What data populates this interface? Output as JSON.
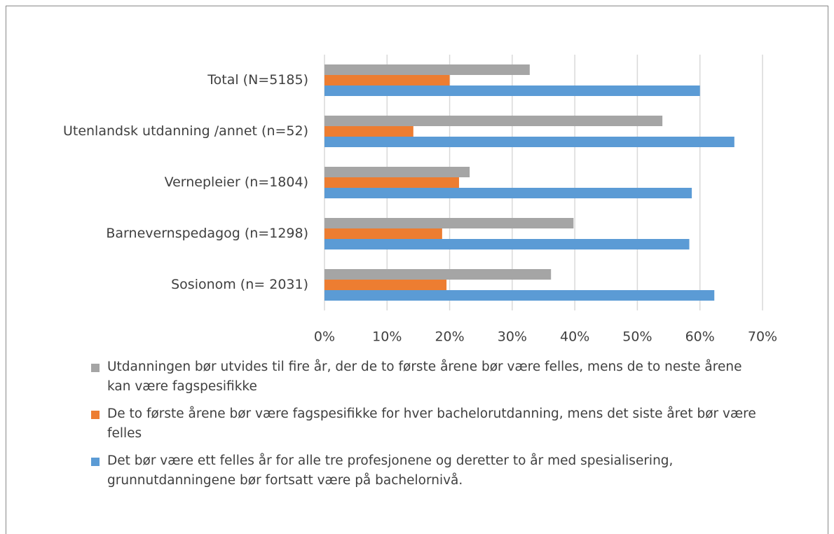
{
  "chart_data": {
    "type": "bar",
    "orientation": "horizontal",
    "categories": [
      "Total (N=5185)",
      "Utenlandsk utdanning /annet (n=52)",
      "Vernepleier (n=1804)",
      "Barnevernspedagog (n=1298)",
      "Sosionom (n= 2031)"
    ],
    "series": [
      {
        "name": "Utdanningen bør utvides til fire år, der de to første årene bør være felles, mens de to neste årene kan være fagspesifikke",
        "color": "#a5a5a5",
        "values": [
          32.8,
          54.0,
          23.2,
          39.8,
          36.2
        ]
      },
      {
        "name": "De to første årene bør være fagspesifikke for hver bachelorutdanning, mens det siste året bør være felles",
        "color": "#ed7d31",
        "values": [
          20.0,
          14.2,
          21.5,
          18.8,
          19.5
        ]
      },
      {
        "name": "Det bør være ett felles år for alle tre profesjonene og deretter to år med spesialisering, grunnutdanningene bør fortsatt være på bachelornivå.",
        "color": "#5b9bd5",
        "values": [
          60.0,
          65.5,
          58.7,
          58.3,
          62.3
        ]
      }
    ],
    "xlim": [
      0,
      70
    ],
    "xticks": [
      {
        "value": 0,
        "label": "0%"
      },
      {
        "value": 10,
        "label": "10%"
      },
      {
        "value": 20,
        "label": "20%"
      },
      {
        "value": 30,
        "label": "30%"
      },
      {
        "value": 40,
        "label": "40%"
      },
      {
        "value": 50,
        "label": "50%"
      },
      {
        "value": 60,
        "label": "60%"
      },
      {
        "value": 70,
        "label": "70%"
      }
    ],
    "grid": true,
    "legend": "bottom"
  }
}
